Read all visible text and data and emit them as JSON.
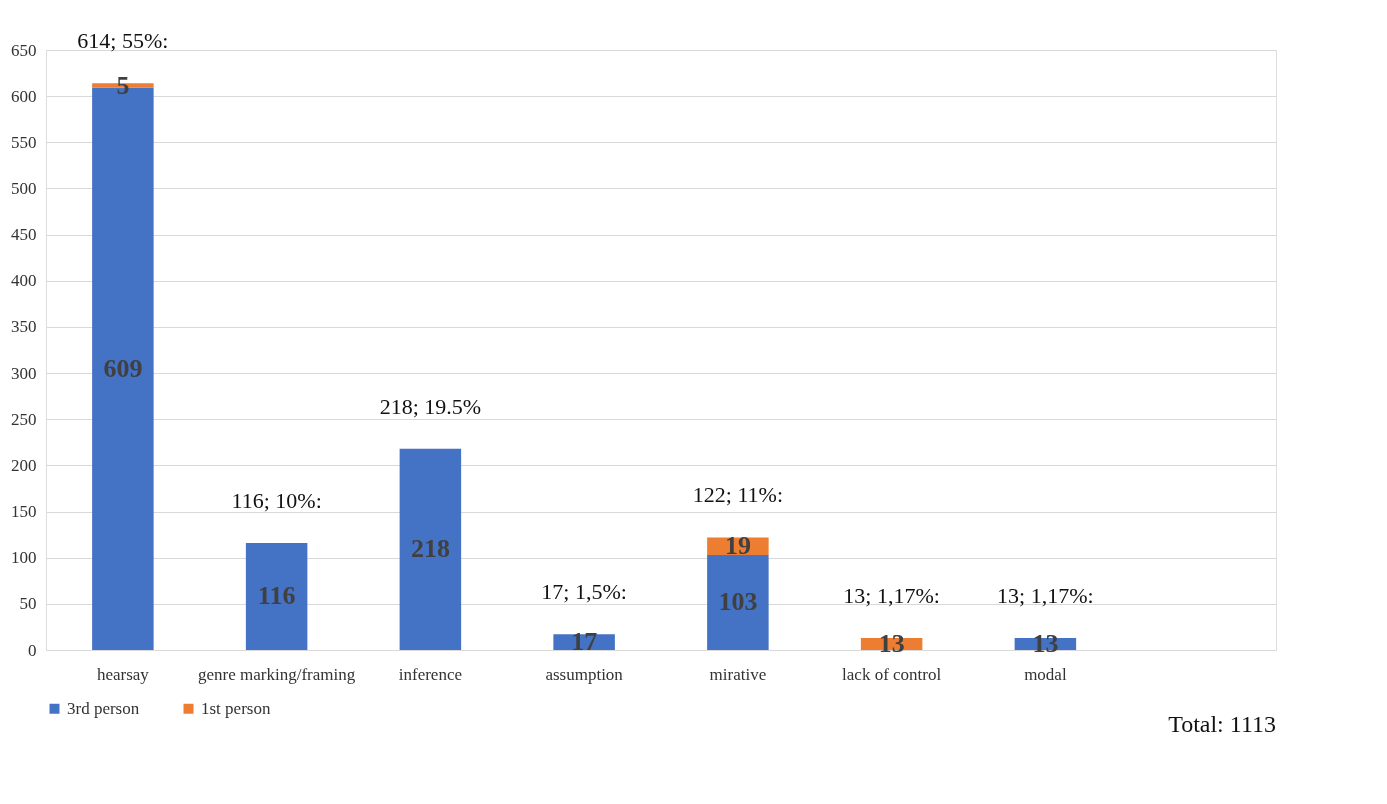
{
  "chart_data": {
    "type": "bar",
    "stacked": true,
    "categories": [
      "hearsay",
      "genre marking/framing",
      "inference",
      "assumption",
      "mirative",
      "lack of control",
      "modal",
      null
    ],
    "series": [
      {
        "name": "3rd person",
        "color": "#4472c4",
        "values": [
          609,
          116,
          218,
          17,
          103,
          null,
          13,
          null
        ]
      },
      {
        "name": "1st person",
        "color": "#ed7d31",
        "values": [
          5,
          null,
          null,
          null,
          19,
          13,
          null,
          null
        ]
      }
    ],
    "ylim": [
      0,
      650
    ],
    "yticks": [
      0,
      50,
      100,
      150,
      200,
      250,
      300,
      350,
      400,
      450,
      500,
      550,
      600,
      650
    ],
    "grid": "y",
    "legend": "bottom",
    "data_labels": true,
    "totals": [
      "614; 55%:",
      "116; 10%:",
      "218; 19.5%",
      "17; 1,5%:",
      "122; 11%:",
      "13; 1,17%:",
      "13; 1,17%:",
      null
    ],
    "annotations": [
      "Total: 1113"
    ]
  }
}
